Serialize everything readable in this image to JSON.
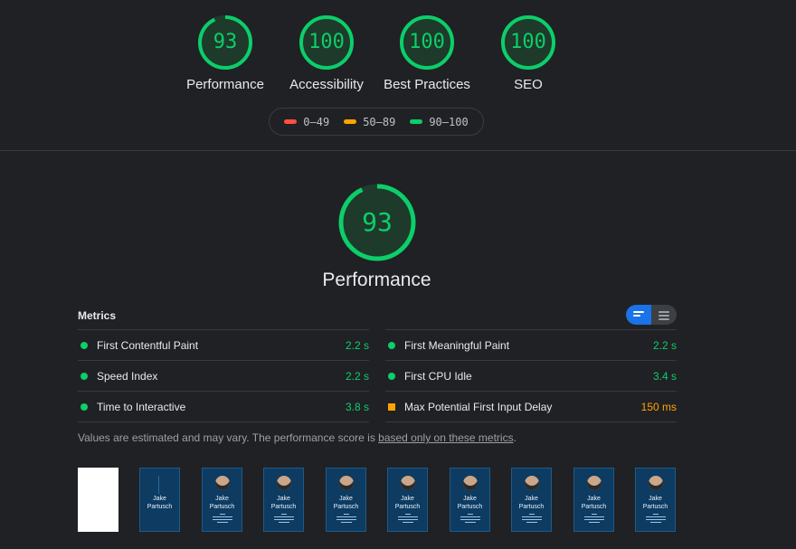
{
  "categories": [
    {
      "label": "Performance",
      "score": "93",
      "fraction": 0.93
    },
    {
      "label": "Accessibility",
      "score": "100",
      "fraction": 1.0
    },
    {
      "label": "Best Practices",
      "score": "100",
      "fraction": 1.0
    },
    {
      "label": "SEO",
      "score": "100",
      "fraction": 1.0
    }
  ],
  "legend": [
    {
      "label": "0–49",
      "color": "#ff4e42"
    },
    {
      "label": "50–89",
      "color": "#ffa400"
    },
    {
      "label": "90–100",
      "color": "#0cce6b"
    }
  ],
  "performance": {
    "score": "93",
    "fraction": 0.93,
    "title": "Performance"
  },
  "metrics": {
    "header": "Metrics",
    "left": [
      {
        "name": "First Contentful Paint",
        "value": "2.2 s",
        "status": "pass"
      },
      {
        "name": "Speed Index",
        "value": "2.2 s",
        "status": "pass"
      },
      {
        "name": "Time to Interactive",
        "value": "3.8 s",
        "status": "pass"
      }
    ],
    "right": [
      {
        "name": "First Meaningful Paint",
        "value": "2.2 s",
        "status": "pass"
      },
      {
        "name": "First CPU Idle",
        "value": "3.4 s",
        "status": "pass"
      },
      {
        "name": "Max Potential First Input Delay",
        "value": "150 ms",
        "status": "average"
      }
    ]
  },
  "note": {
    "text": "Values are estimated and may vary. The performance score is ",
    "link": "based only on these metrics",
    "end": "."
  },
  "filmstrip": {
    "name_line1": "Jake",
    "name_line2": "Partusch"
  },
  "colors": {
    "pass": "#0cce6b",
    "average": "#ffa400",
    "fail": "#ff4e42",
    "accent": "#1a73e8"
  }
}
